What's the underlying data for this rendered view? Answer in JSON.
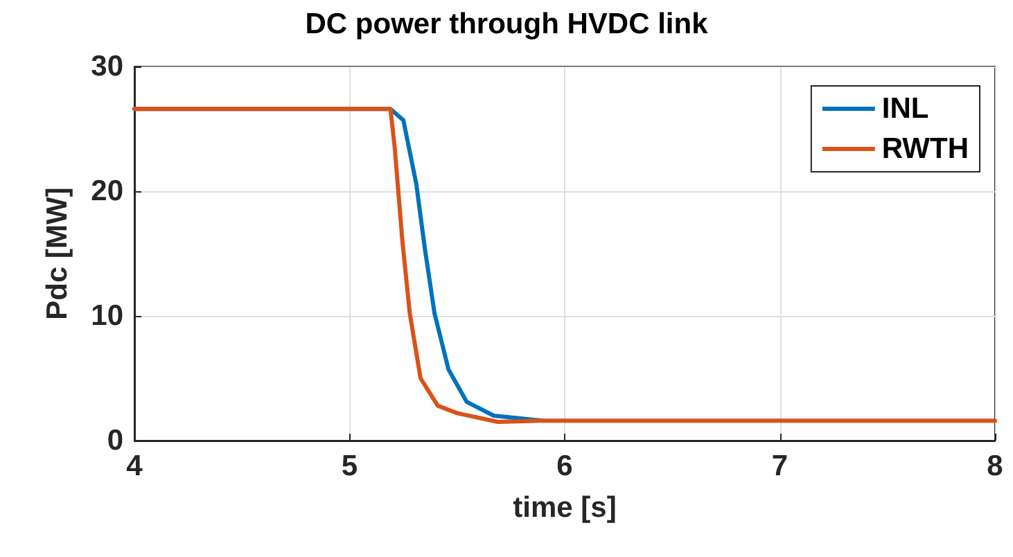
{
  "chart_data": {
    "type": "line",
    "title": "DC power through HVDC link",
    "xlabel": "time [s]",
    "ylabel": "Pdc [MW]",
    "xlim": [
      4,
      8
    ],
    "xticks": [
      4,
      5,
      6,
      7,
      8
    ],
    "ylim": [
      0,
      30
    ],
    "yticks": [
      0,
      10,
      20,
      30
    ],
    "grid": true,
    "legend": "top right",
    "marker": "none",
    "line_style": "solid",
    "series": [
      {
        "name": "INL",
        "color": "#0072bd",
        "x": [
          4,
          5,
          5.19,
          5.25,
          5.31,
          5.35,
          5.395,
          5.46,
          5.545,
          5.67,
          5.84,
          5.9
        ],
        "values": [
          26.6,
          26.6,
          26.6,
          25.7,
          20.6,
          15.4,
          10.2,
          5.7,
          3.1,
          2.0,
          1.7,
          1.6
        ]
      },
      {
        "name": "RWTH",
        "color": "#d95319",
        "x": [
          4,
          5,
          5.19,
          5.21,
          5.245,
          5.28,
          5.33,
          5.41,
          5.5,
          5.69,
          5.885,
          6.5,
          7,
          8
        ],
        "values": [
          26.6,
          26.6,
          26.6,
          23.5,
          16.1,
          10.2,
          5.0,
          2.8,
          2.2,
          1.5,
          1.6,
          1.6,
          1.6,
          1.6
        ]
      }
    ]
  }
}
